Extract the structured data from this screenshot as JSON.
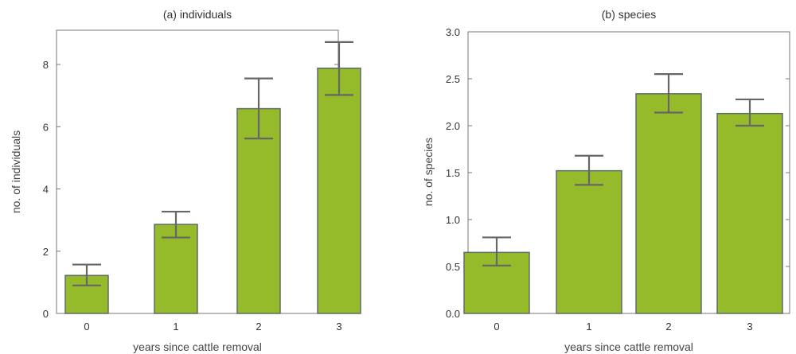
{
  "colors": {
    "bar_fill": "#95bb2b",
    "bar_stroke": "#5f6b6b",
    "errorbar": "#666666",
    "axis": "#777777"
  },
  "chart_data": [
    {
      "type": "bar",
      "title": "(a) individuals",
      "xlabel": "years since cattle removal",
      "ylabel": "no. of individuals",
      "categories": [
        "0",
        "1",
        "2",
        "3"
      ],
      "values": [
        1.22,
        2.86,
        6.58,
        7.88
      ],
      "error_low": [
        0.9,
        2.44,
        5.62,
        7.02
      ],
      "error_high": [
        1.57,
        3.27,
        7.55,
        8.72
      ],
      "ylim": [
        0,
        9.1
      ],
      "yticks": [
        0,
        2,
        4,
        6,
        8
      ],
      "ytick_labels": [
        "0",
        "2",
        "4",
        "6",
        "8"
      ],
      "grid": false
    },
    {
      "type": "bar",
      "title": "(b) species",
      "xlabel": "years since cattle removal",
      "ylabel": "no. of species",
      "categories": [
        "0",
        "1",
        "2",
        "3"
      ],
      "values": [
        0.65,
        1.52,
        2.34,
        2.13
      ],
      "error_low": [
        0.51,
        1.37,
        2.14,
        2.0
      ],
      "error_high": [
        0.81,
        1.68,
        2.55,
        2.28
      ],
      "ylim": [
        0,
        3.0
      ],
      "yticks": [
        0,
        0.5,
        1.0,
        1.5,
        2.0,
        2.5,
        3.0
      ],
      "ytick_labels": [
        "0.0",
        "0.5",
        "1.0",
        "1.5",
        "2.0",
        "2.5",
        "3.0"
      ],
      "grid": false
    }
  ]
}
